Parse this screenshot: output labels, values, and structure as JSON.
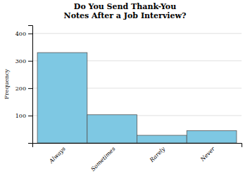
{
  "chart_data": {
    "type": "bar",
    "title": "Do You Send Thank-You\nNotes After a Job Interview?",
    "categories": [
      "Always",
      "Sometimes",
      "Rarely",
      "Never"
    ],
    "values": [
      330,
      103,
      28,
      45
    ],
    "color": "#7EC8E3",
    "ylabel": "Frequency",
    "ylim": [
      0,
      430
    ],
    "yticks": [
      100,
      200,
      300,
      400
    ],
    "grid": true
  }
}
